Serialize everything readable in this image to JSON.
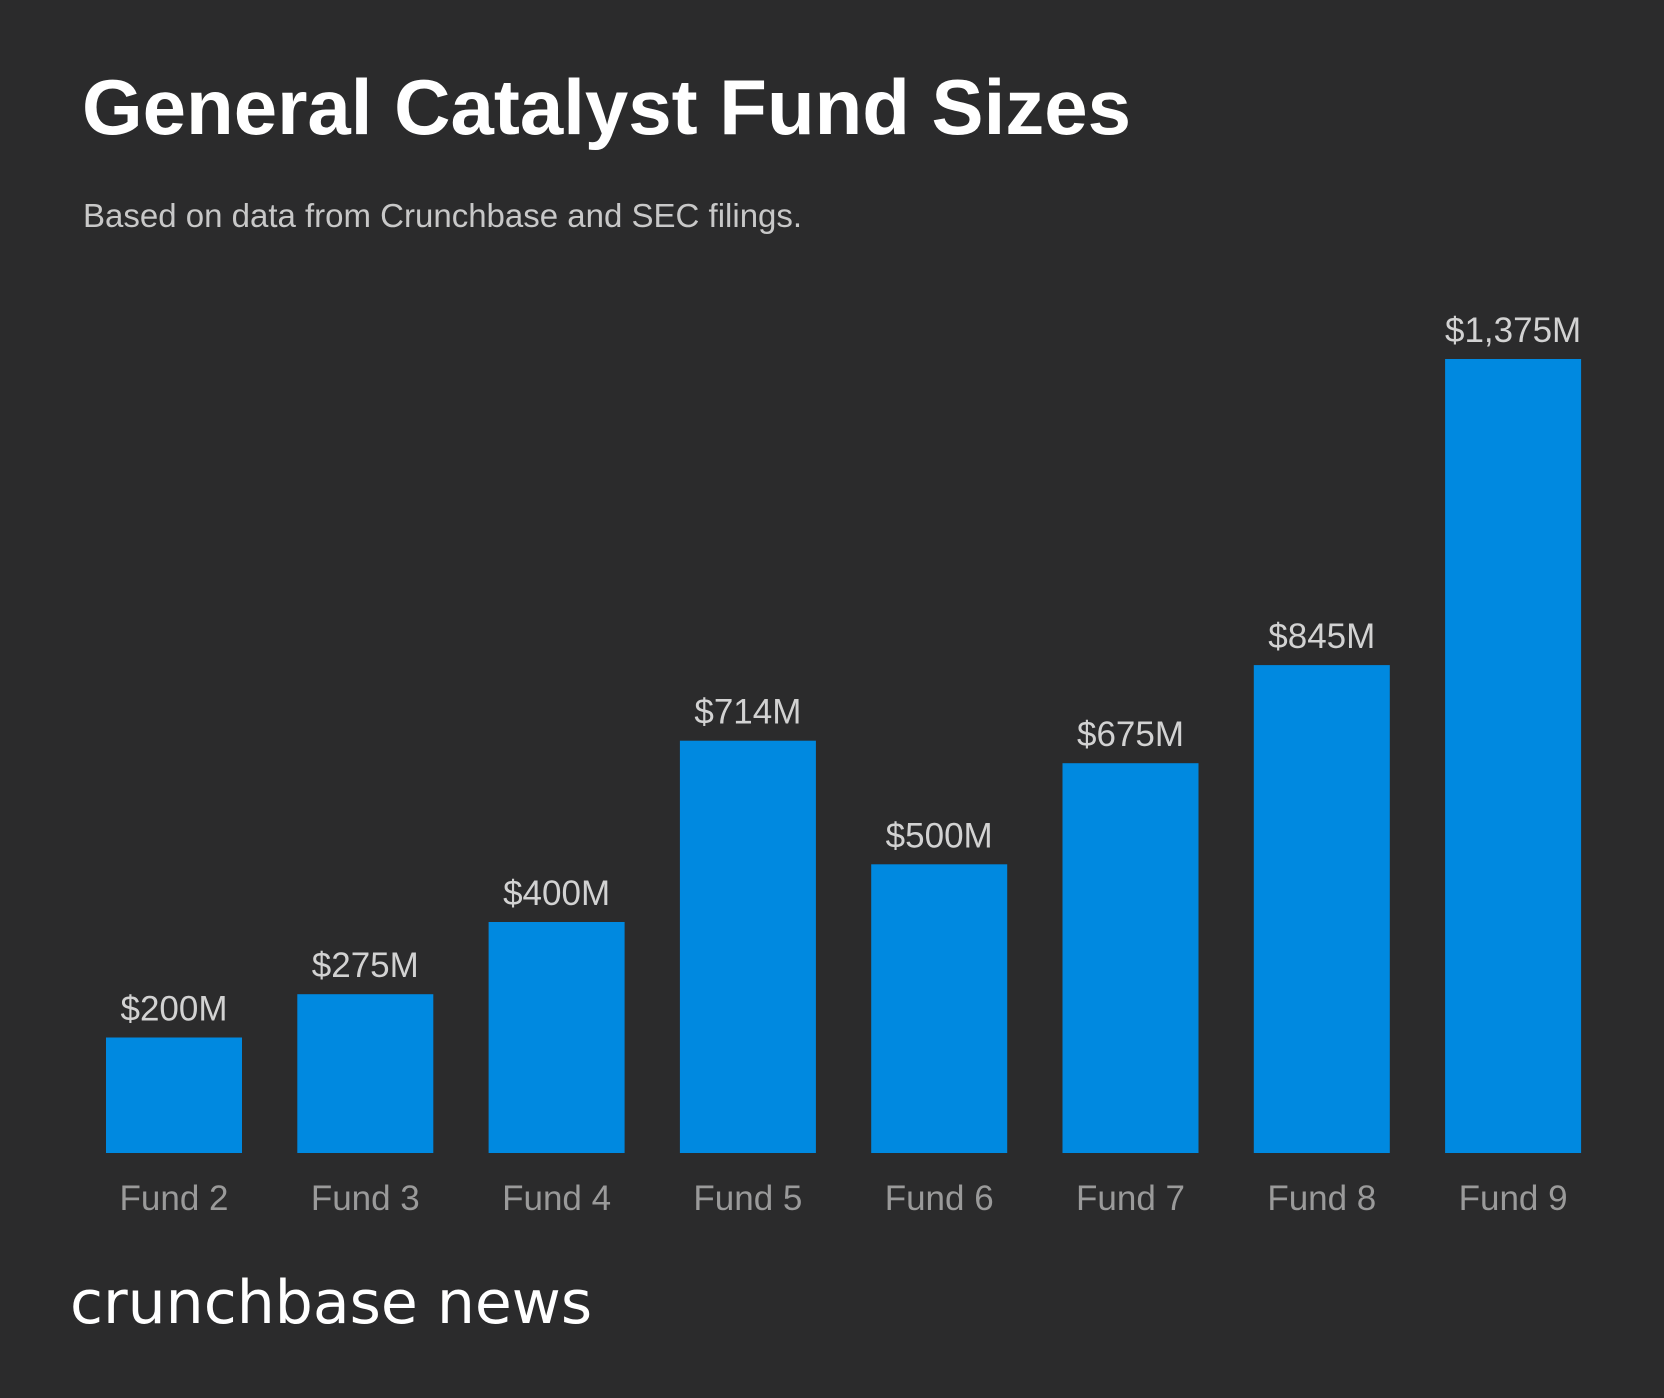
{
  "header": {
    "title": "General Catalyst Fund Sizes",
    "subtitle": "Based on data from Crunchbase and SEC filings."
  },
  "footer": {
    "brand": "crunchbase news"
  },
  "colors": {
    "background": "#2b2b2c",
    "bar": "#0089e0",
    "value_label": "#d2d2d2",
    "category_label": "#9a9a9a"
  },
  "chart_data": {
    "type": "bar",
    "categories": [
      "Fund 2",
      "Fund 3",
      "Fund 4",
      "Fund 5",
      "Fund 6",
      "Fund 7",
      "Fund 8",
      "Fund 9"
    ],
    "values": [
      200,
      275,
      400,
      714,
      500,
      675,
      845,
      1375
    ],
    "value_labels": [
      "$200M",
      "$275M",
      "$400M",
      "$714M",
      "$500M",
      "$675M",
      "$845M",
      "$1,375M"
    ],
    "title": "General Catalyst Fund Sizes",
    "subtitle": "Based on data from Crunchbase and SEC filings.",
    "xlabel": "",
    "ylabel": "",
    "ylim": [
      0,
      1375
    ],
    "grid": false,
    "legend": "none"
  }
}
